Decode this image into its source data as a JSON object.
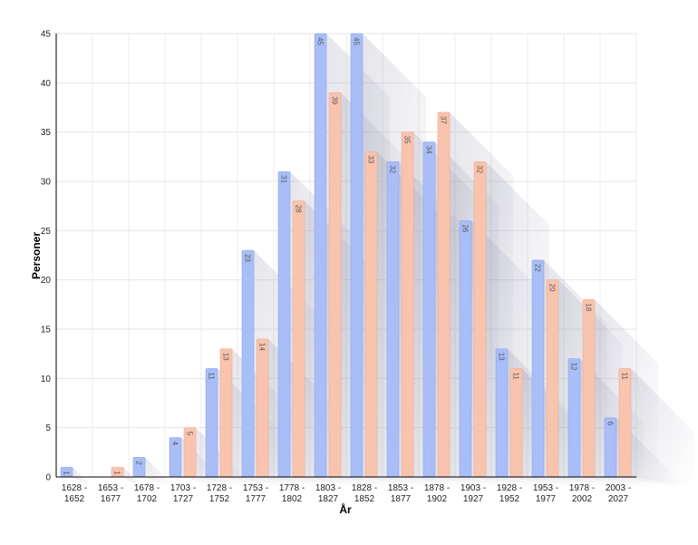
{
  "chart_data": {
    "type": "bar",
    "xlabel": "År",
    "ylabel": "Personer",
    "ylim": [
      0,
      45
    ],
    "yticks": [
      0,
      5,
      10,
      15,
      20,
      25,
      30,
      35,
      40,
      45
    ],
    "grid": true,
    "categories": [
      [
        "1628 -",
        "1652"
      ],
      [
        "1653 -",
        "1677"
      ],
      [
        "1678 -",
        "1702"
      ],
      [
        "1703 -",
        "1727"
      ],
      [
        "1728 -",
        "1752"
      ],
      [
        "1753 -",
        "1777"
      ],
      [
        "1778 -",
        "1802"
      ],
      [
        "1803 -",
        "1827"
      ],
      [
        "1828 -",
        "1852"
      ],
      [
        "1853 -",
        "1877"
      ],
      [
        "1878 -",
        "1902"
      ],
      [
        "1903 -",
        "1927"
      ],
      [
        "1928 -",
        "1952"
      ],
      [
        "1953 -",
        "1977"
      ],
      [
        "1978 -",
        "2002"
      ],
      [
        "2003 -",
        "2027"
      ]
    ],
    "series": [
      {
        "values": [
          1,
          null,
          2,
          4,
          11,
          23,
          31,
          45,
          45,
          32,
          34,
          26,
          13,
          22,
          12,
          6
        ],
        "color": "#a9bef7",
        "stroke": "#8ea6ee"
      },
      {
        "values": [
          null,
          1,
          null,
          5,
          13,
          14,
          28,
          39,
          33,
          35,
          37,
          32,
          11,
          20,
          18,
          11
        ],
        "color": "#f9c4ae",
        "stroke": "#eeaa90"
      }
    ]
  }
}
